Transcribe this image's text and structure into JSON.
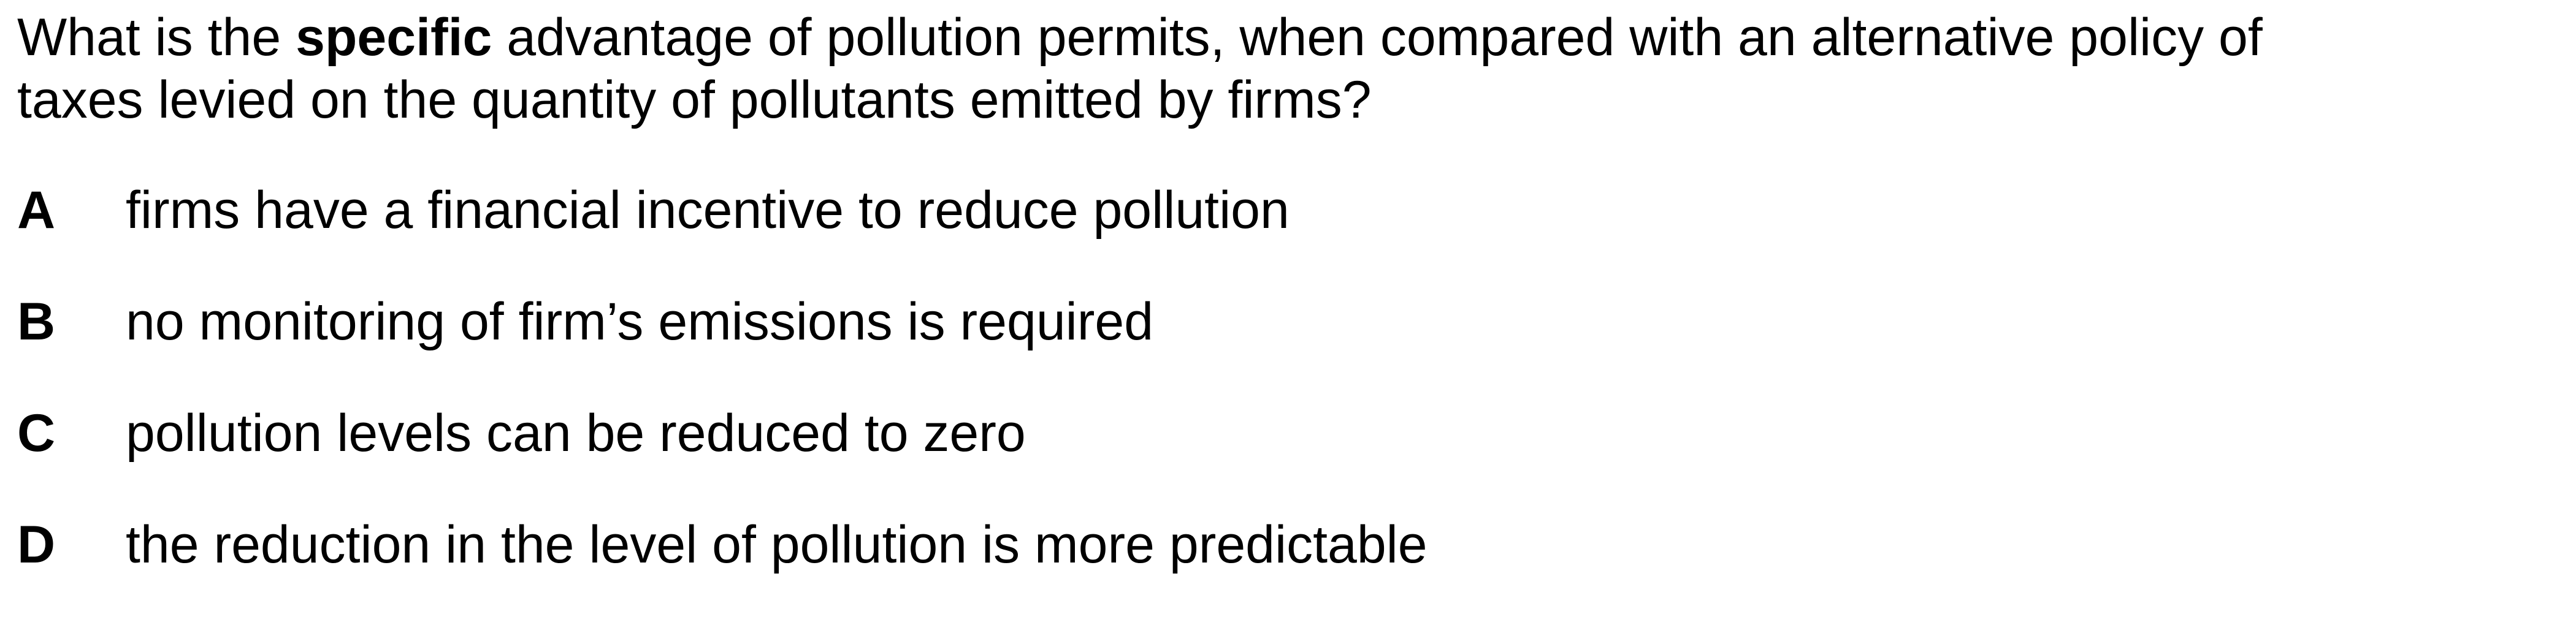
{
  "question": {
    "line1_pre": "What is the ",
    "line1_emph": "specific",
    "line1_post": " advantage of pollution permits, when compared with an alternative policy of",
    "line2": "taxes levied on the quantity of pollutants emitted by firms?"
  },
  "options": [
    {
      "letter": "A",
      "text": "firms have a financial incentive to reduce pollution"
    },
    {
      "letter": "B",
      "text": "no monitoring of firm’s emissions is required"
    },
    {
      "letter": "C",
      "text": "pollution levels can be reduced to zero"
    },
    {
      "letter": "D",
      "text": "the reduction in the level of pollution is more predictable"
    }
  ]
}
